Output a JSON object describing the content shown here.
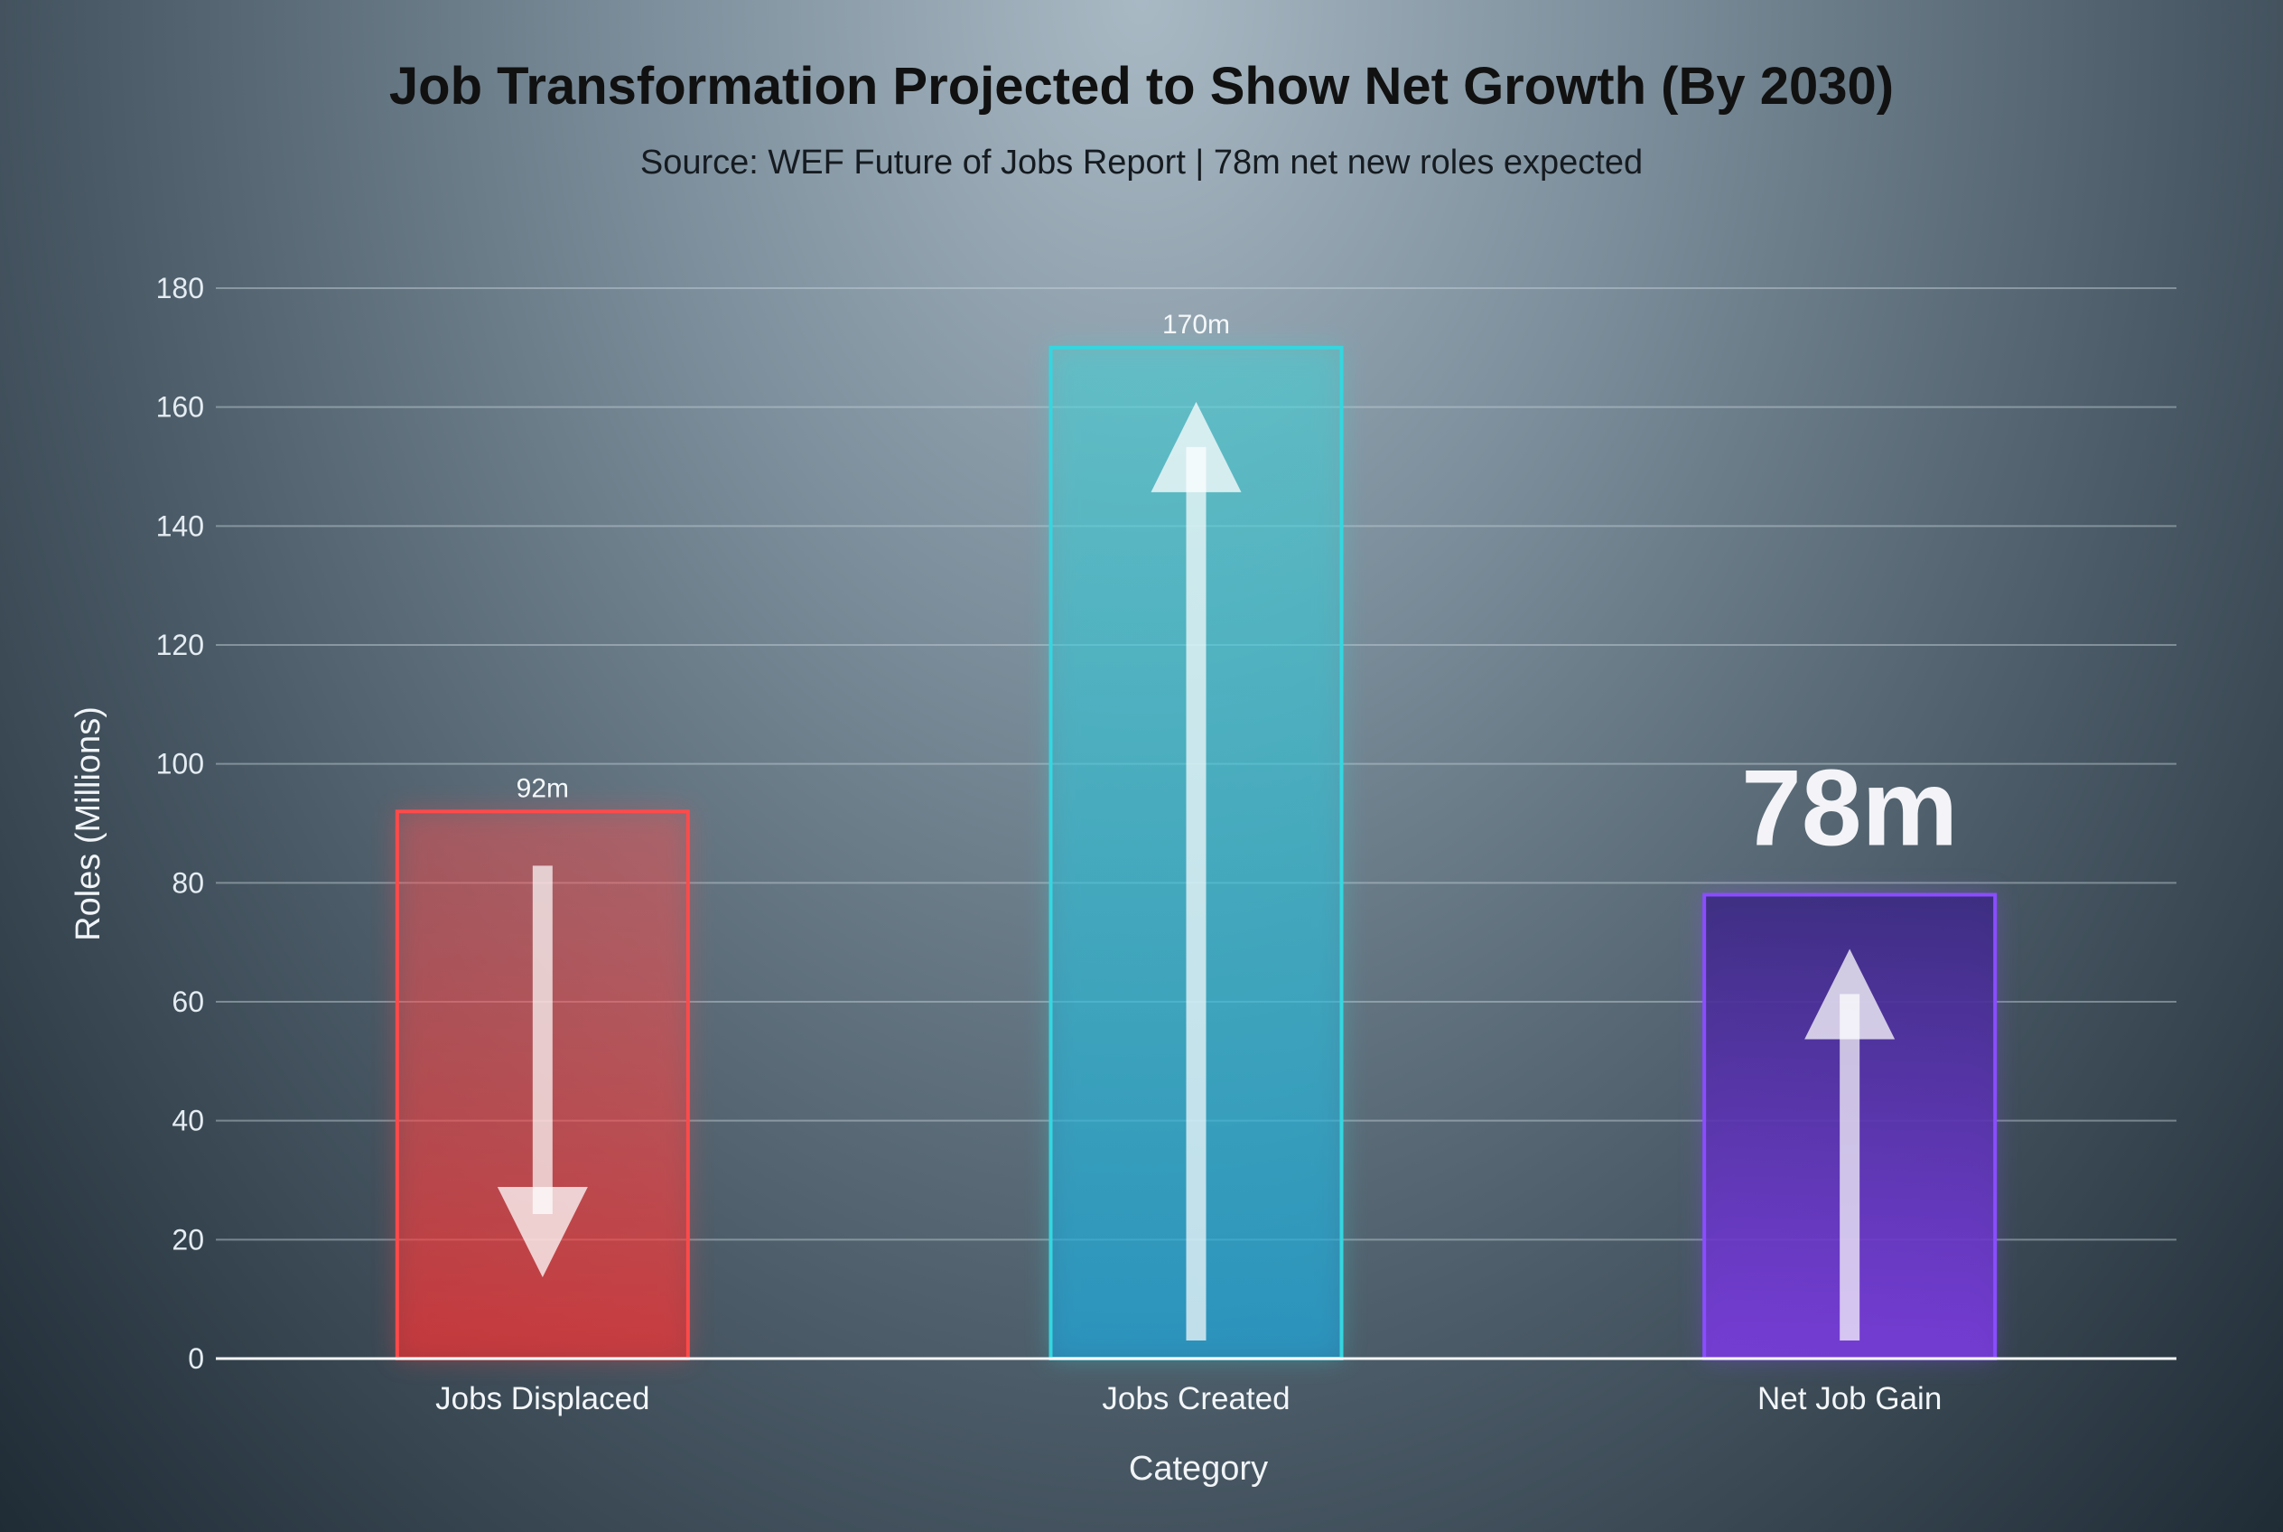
{
  "chart_data": {
    "type": "bar",
    "title": "Job Transformation Projected to Show Net Growth (By 2030)",
    "subtitle": "Source: WEF Future of Jobs Report | 78m net new roles expected",
    "xlabel": "Category",
    "ylabel": "Roles (Millions)",
    "ylim": [
      0,
      180
    ],
    "yticks": [
      0,
      20,
      40,
      60,
      80,
      100,
      120,
      140,
      160,
      180
    ],
    "grid": true,
    "categories": [
      "Jobs Displaced",
      "Jobs Created",
      "Net Job Gain"
    ],
    "values": [
      92,
      170,
      78
    ],
    "data_labels": [
      "92m",
      "170m",
      "78m"
    ],
    "colors": [
      "#ff4a4a",
      "#35d6e0",
      "#8a4dff"
    ]
  }
}
